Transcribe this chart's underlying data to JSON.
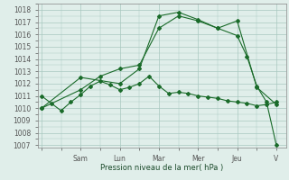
{
  "background_color": "#e0eeea",
  "grid_color": "#a8c8c0",
  "line_color": "#1a6b2a",
  "x_tick_labels": [
    "",
    "Sam",
    "Lun",
    "Mar",
    "Mer",
    "Jeu",
    "V"
  ],
  "x_tick_positions": [
    0,
    2,
    4,
    6,
    8,
    10,
    12
  ],
  "xlim": [
    -0.2,
    12.5
  ],
  "ylim": [
    1006.8,
    1018.5
  ],
  "yticks": [
    1007,
    1008,
    1009,
    1010,
    1011,
    1012,
    1013,
    1014,
    1015,
    1016,
    1017,
    1018
  ],
  "xlabel": "Pression niveau de la mer( hPa )",
  "series": [
    {
      "x": [
        0,
        0.5,
        1,
        1.5,
        2,
        2.5,
        3,
        3.5,
        4,
        4.5,
        5,
        5.5,
        6,
        6.5,
        7,
        7.5,
        8,
        8.5,
        9,
        9.5,
        10,
        10.5,
        11,
        11.5,
        12
      ],
      "y": [
        1011.0,
        1010.4,
        1009.8,
        1010.5,
        1011.1,
        1011.8,
        1012.2,
        1011.9,
        1011.5,
        1011.7,
        1012.0,
        1012.6,
        1011.8,
        1011.2,
        1011.3,
        1011.2,
        1011.0,
        1010.9,
        1010.8,
        1010.6,
        1010.5,
        1010.4,
        1010.2,
        1010.3,
        1010.5
      ]
    },
    {
      "x": [
        0,
        2,
        4,
        5,
        6,
        7,
        8,
        9,
        10,
        10.5,
        11,
        11.5,
        12
      ],
      "y": [
        1010.0,
        1012.5,
        1012.0,
        1013.2,
        1017.5,
        1017.8,
        1017.2,
        1016.5,
        1015.9,
        1014.2,
        1011.8,
        1010.5,
        1007.0
      ]
    },
    {
      "x": [
        0,
        2,
        3,
        4,
        5,
        6,
        7,
        8,
        9,
        10,
        11,
        12
      ],
      "y": [
        1010.0,
        1011.5,
        1012.6,
        1013.2,
        1013.5,
        1016.5,
        1017.5,
        1017.1,
        1016.5,
        1017.1,
        1011.7,
        1010.3
      ]
    }
  ]
}
